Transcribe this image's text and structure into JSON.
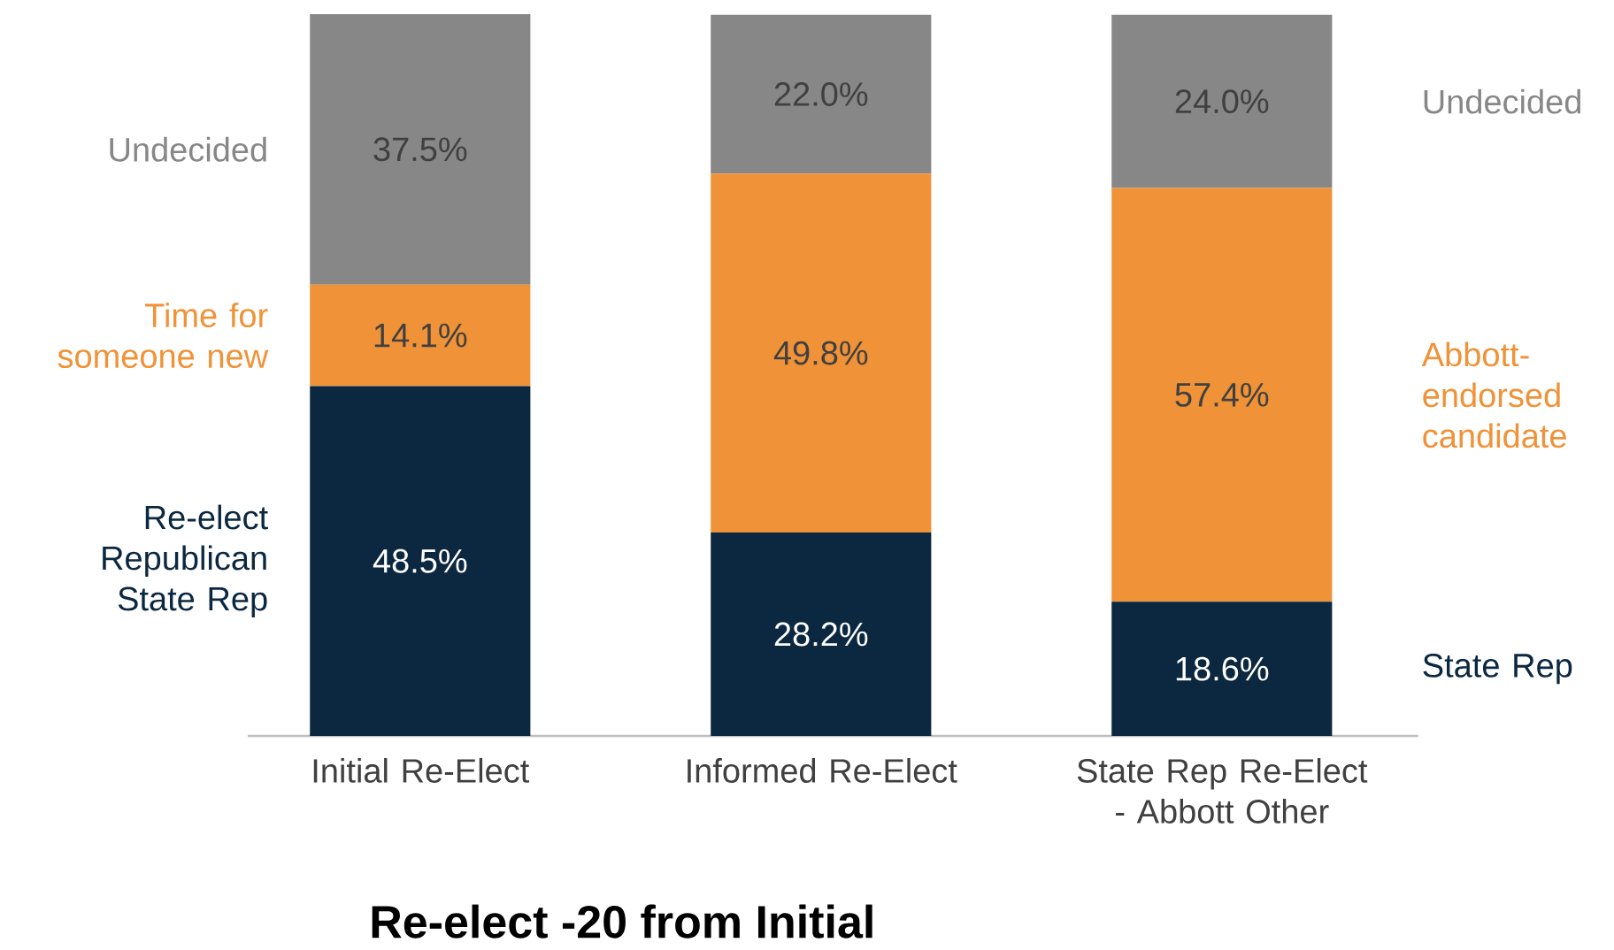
{
  "chart_data": {
    "type": "bar",
    "stacked": true,
    "title": "Re-elect -20 from Initial",
    "categories": [
      "Initial Re-Elect",
      "Informed Re-Elect",
      "State Rep Re-Elect - Abbott Other"
    ],
    "series": [
      {
        "name": "Re-elect Republican State Rep",
        "color": "#0c2840",
        "values": [
          48.5,
          28.2,
          18.6
        ],
        "value_labels": [
          "48.5%",
          "28.2%",
          "18.6%"
        ]
      },
      {
        "name": "Time for someone new",
        "color": "#f09237",
        "values": [
          14.1,
          49.8,
          57.4
        ],
        "value_labels": [
          "14.1%",
          "49.8%",
          "57.4%"
        ]
      },
      {
        "name": "Undecided",
        "color": "#878787",
        "values": [
          37.5,
          22.0,
          24.0
        ],
        "value_labels": [
          "37.5%",
          "22.0%",
          "24.0%"
        ]
      }
    ],
    "tick_labels": "x",
    "annotations": [
      "Undecided",
      "Abbott-endorsed candidate",
      "State Rep"
    ]
  }
}
